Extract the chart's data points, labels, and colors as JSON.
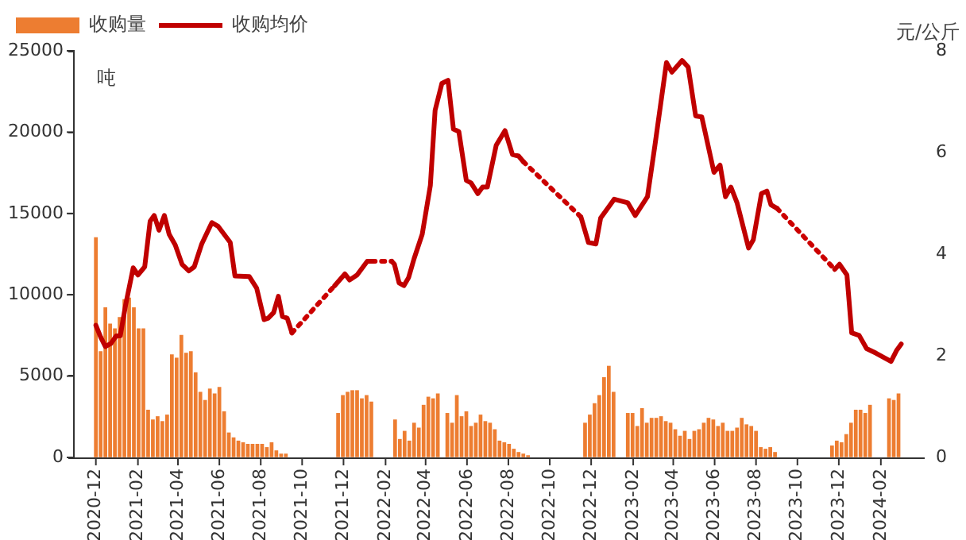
{
  "chart_data": {
    "type": "line",
    "ylabel": "吨",
    "y2label": "元/公斤",
    "legend": "top left",
    "grid": false,
    "xlim": [
      "2020-12-01",
      "2024-03-03"
    ],
    "xticks": [
      "2020-12",
      "2021-02",
      "2021-04",
      "2021-06",
      "2021-08",
      "2021-10",
      "2021-12",
      "2022-02",
      "2022-04",
      "2022-06",
      "2022-08",
      "2022-10",
      "2022-12",
      "2023-02",
      "2023-04",
      "2023-06",
      "2023-08",
      "2023-10",
      "2023-12",
      "2024-02"
    ],
    "ylim": [
      0,
      25000
    ],
    "yticks": [
      0,
      5000,
      10000,
      15000,
      20000,
      25000
    ],
    "y2lim": [
      0,
      8
    ],
    "y2ticks": [
      0,
      2,
      4,
      6,
      8
    ],
    "series": [
      {
        "name": "收购量",
        "type": "bar",
        "color": "#ed7d31",
        "x": [
          "2020-12-01",
          "2020-12-08",
          "2020-12-15",
          "2020-12-22",
          "2020-12-29",
          "2021-01-05",
          "2021-01-12",
          "2021-01-19",
          "2021-01-26",
          "2021-02-02",
          "2021-02-09",
          "2021-02-16",
          "2021-02-23",
          "2021-03-02",
          "2021-03-09",
          "2021-03-16",
          "2021-03-23",
          "2021-03-30",
          "2021-04-06",
          "2021-04-13",
          "2021-04-20",
          "2021-04-27",
          "2021-05-04",
          "2021-05-11",
          "2021-05-18",
          "2021-05-25",
          "2021-06-01",
          "2021-06-08",
          "2021-06-15",
          "2021-06-22",
          "2021-06-29",
          "2021-07-06",
          "2021-07-13",
          "2021-07-20",
          "2021-07-27",
          "2021-08-03",
          "2021-08-10",
          "2021-08-17",
          "2021-08-24",
          "2021-08-31",
          "2021-09-07",
          "2021-11-23",
          "2021-11-30",
          "2021-12-07",
          "2021-12-14",
          "2021-12-21",
          "2021-12-28",
          "2022-01-04",
          "2022-01-11",
          "2022-02-15",
          "2022-02-22",
          "2022-03-01",
          "2022-03-08",
          "2022-03-15",
          "2022-03-22",
          "2022-03-29",
          "2022-04-05",
          "2022-04-12",
          "2022-04-19",
          "2022-05-03",
          "2022-05-10",
          "2022-05-17",
          "2022-05-24",
          "2022-05-31",
          "2022-06-07",
          "2022-06-14",
          "2022-06-21",
          "2022-06-28",
          "2022-07-05",
          "2022-07-12",
          "2022-07-19",
          "2022-07-26",
          "2022-08-02",
          "2022-08-09",
          "2022-08-16",
          "2022-08-23",
          "2022-08-30",
          "2022-11-22",
          "2022-11-29",
          "2022-12-06",
          "2022-12-13",
          "2022-12-20",
          "2022-12-27",
          "2023-01-03",
          "2023-01-24",
          "2023-01-31",
          "2023-02-07",
          "2023-02-14",
          "2023-02-21",
          "2023-02-28",
          "2023-03-07",
          "2023-03-14",
          "2023-03-21",
          "2023-03-28",
          "2023-04-04",
          "2023-04-11",
          "2023-04-18",
          "2023-04-25",
          "2023-05-02",
          "2023-05-09",
          "2023-05-16",
          "2023-05-23",
          "2023-05-30",
          "2023-06-06",
          "2023-06-13",
          "2023-06-20",
          "2023-06-27",
          "2023-07-04",
          "2023-07-11",
          "2023-07-18",
          "2023-07-25",
          "2023-08-01",
          "2023-08-08",
          "2023-08-15",
          "2023-08-22",
          "2023-08-29",
          "2023-11-21",
          "2023-11-28",
          "2023-12-05",
          "2023-12-12",
          "2023-12-19",
          "2023-12-26",
          "2024-01-02",
          "2024-01-09",
          "2024-01-16",
          "2024-02-13",
          "2024-02-20",
          "2024-02-27"
        ],
        "values": [
          13500,
          6500,
          9200,
          8200,
          7900,
          8600,
          9700,
          9800,
          9200,
          7900,
          7900,
          2900,
          2300,
          2500,
          2200,
          2600,
          6300,
          6100,
          7500,
          6400,
          6500,
          5200,
          4000,
          3500,
          4200,
          3900,
          4300,
          2800,
          1500,
          1200,
          1000,
          900,
          800,
          800,
          800,
          800,
          600,
          900,
          400,
          200,
          200,
          2700,
          3800,
          4000,
          4100,
          4100,
          3600,
          3800,
          3400,
          2300,
          1100,
          1600,
          1000,
          2100,
          1800,
          3200,
          3700,
          3600,
          3900,
          2700,
          2100,
          3800,
          2500,
          2800,
          1900,
          2100,
          2600,
          2200,
          2100,
          1700,
          1000,
          900,
          800,
          500,
          300,
          200,
          100,
          2100,
          2600,
          3300,
          3800,
          4900,
          5600,
          4000,
          2700,
          2700,
          1900,
          3000,
          2100,
          2400,
          2400,
          2500,
          2200,
          2100,
          1700,
          1300,
          1600,
          1100,
          1600,
          1700,
          2100,
          2400,
          2300,
          1900,
          2100,
          1600,
          1600,
          1800,
          2400,
          2000,
          1900,
          1600,
          600,
          500,
          600,
          300,
          700,
          1000,
          900,
          1400,
          2100,
          2900,
          2900,
          2700,
          3200,
          3600,
          3500,
          3900
        ]
      },
      {
        "name": "收购均价",
        "axis": "y2",
        "color": "#c00000",
        "line_style": "solid",
        "marker": "none",
        "x": [
          "2020-12-01",
          "2020-12-08",
          "2020-12-15",
          "2020-12-23",
          "2020-12-31",
          "2021-01-06",
          "2021-01-14",
          "2021-01-25",
          "2021-02-01",
          "2021-02-11",
          "2021-02-19",
          "2021-02-25",
          "2021-03-04",
          "2021-03-12",
          "2021-03-19",
          "2021-03-28",
          "2021-04-07",
          "2021-04-17",
          "2021-04-25",
          "2021-05-06",
          "2021-05-21",
          "2021-05-30",
          "2021-06-08",
          "2021-06-17",
          "2021-06-24",
          "2021-07-15",
          "2021-07-26",
          "2021-08-06",
          "2021-08-12",
          "2021-08-20",
          "2021-08-27",
          "2021-09-02",
          "2021-09-09",
          "2021-09-16",
          "2021-10-15",
          "2021-11-18",
          "2021-12-03",
          "2021-12-10",
          "2021-12-21",
          "2022-01-05",
          "2022-01-12",
          "2022-01-25",
          "2022-02-10",
          "2022-02-14",
          "2022-02-21",
          "2022-02-28",
          "2022-03-07",
          "2022-03-15",
          "2022-03-27",
          "2022-04-08",
          "2022-04-15",
          "2022-04-25",
          "2022-05-04",
          "2022-05-12",
          "2022-05-20",
          "2022-05-31",
          "2022-06-07",
          "2022-06-17",
          "2022-06-24",
          "2022-07-01",
          "2022-07-14",
          "2022-07-27",
          "2022-08-07",
          "2022-08-16",
          "2022-08-23",
          "2022-10-01",
          "2022-11-16",
          "2022-11-27",
          "2022-12-08",
          "2022-12-15",
          "2023-01-04",
          "2023-01-24",
          "2023-02-04",
          "2023-02-22",
          "2023-03-05",
          "2023-03-22",
          "2023-03-30",
          "2023-04-14",
          "2023-04-23",
          "2023-05-04",
          "2023-05-13",
          "2023-05-31",
          "2023-06-09",
          "2023-06-17",
          "2023-06-25",
          "2023-07-04",
          "2023-07-21",
          "2023-07-28",
          "2023-08-09",
          "2023-08-17",
          "2023-08-23",
          "2023-09-01",
          "2023-10-15",
          "2023-11-25",
          "2023-12-02",
          "2023-12-13",
          "2023-12-20",
          "2023-12-31",
          "2024-01-11",
          "2024-01-25",
          "2024-02-16",
          "2024-02-24",
          "2024-03-02"
        ],
        "values": [
          2.6,
          2.37,
          2.18,
          2.24,
          2.39,
          2.39,
          3.01,
          3.73,
          3.59,
          3.75,
          4.65,
          4.76,
          4.47,
          4.76,
          4.39,
          4.18,
          3.8,
          3.67,
          3.75,
          4.2,
          4.62,
          4.55,
          4.39,
          4.23,
          3.57,
          3.56,
          3.33,
          2.71,
          2.74,
          2.85,
          3.17,
          2.77,
          2.74,
          2.45,
          null,
          3.38,
          3.61,
          3.49,
          3.59,
          3.86,
          3.86,
          null,
          3.86,
          3.8,
          3.43,
          3.38,
          3.54,
          3.91,
          4.39,
          5.35,
          6.83,
          7.36,
          7.42,
          6.46,
          6.41,
          5.45,
          5.4,
          5.19,
          5.32,
          5.32,
          6.14,
          6.43,
          5.96,
          5.93,
          5.82,
          null,
          4.73,
          4.23,
          4.2,
          4.71,
          5.08,
          5.01,
          4.76,
          5.13,
          6.14,
          7.77,
          7.58,
          7.81,
          7.68,
          6.72,
          6.7,
          5.61,
          5.75,
          5.13,
          5.32,
          5.01,
          4.12,
          4.28,
          5.19,
          5.24,
          4.97,
          4.9,
          null,
          3.7,
          3.8,
          3.59,
          2.45,
          2.4,
          2.14,
          2.05,
          1.89,
          2.1,
          2.23
        ]
      },
      {
        "axis": "y2",
        "color": "#cc0000",
        "line_style": "dotted",
        "marker": "none",
        "x": [
          "2021-09-16",
          "2021-11-18"
        ],
        "values": [
          2.45,
          3.38
        ]
      },
      {
        "axis": "y2",
        "color": "#cc0000",
        "line_style": "dotted",
        "marker": "none",
        "x": [
          "2022-01-12",
          "2022-02-10"
        ],
        "values": [
          3.86,
          3.86
        ]
      },
      {
        "axis": "y2",
        "color": "#cc0000",
        "line_style": "dotted",
        "marker": "none",
        "x": [
          "2022-08-23",
          "2022-11-16"
        ],
        "values": [
          5.82,
          4.73
        ]
      },
      {
        "axis": "y2",
        "color": "#cc0000",
        "line_style": "dotted",
        "marker": "none",
        "x": [
          "2023-09-01",
          "2023-11-25"
        ],
        "values": [
          4.9,
          3.7
        ]
      }
    ]
  }
}
